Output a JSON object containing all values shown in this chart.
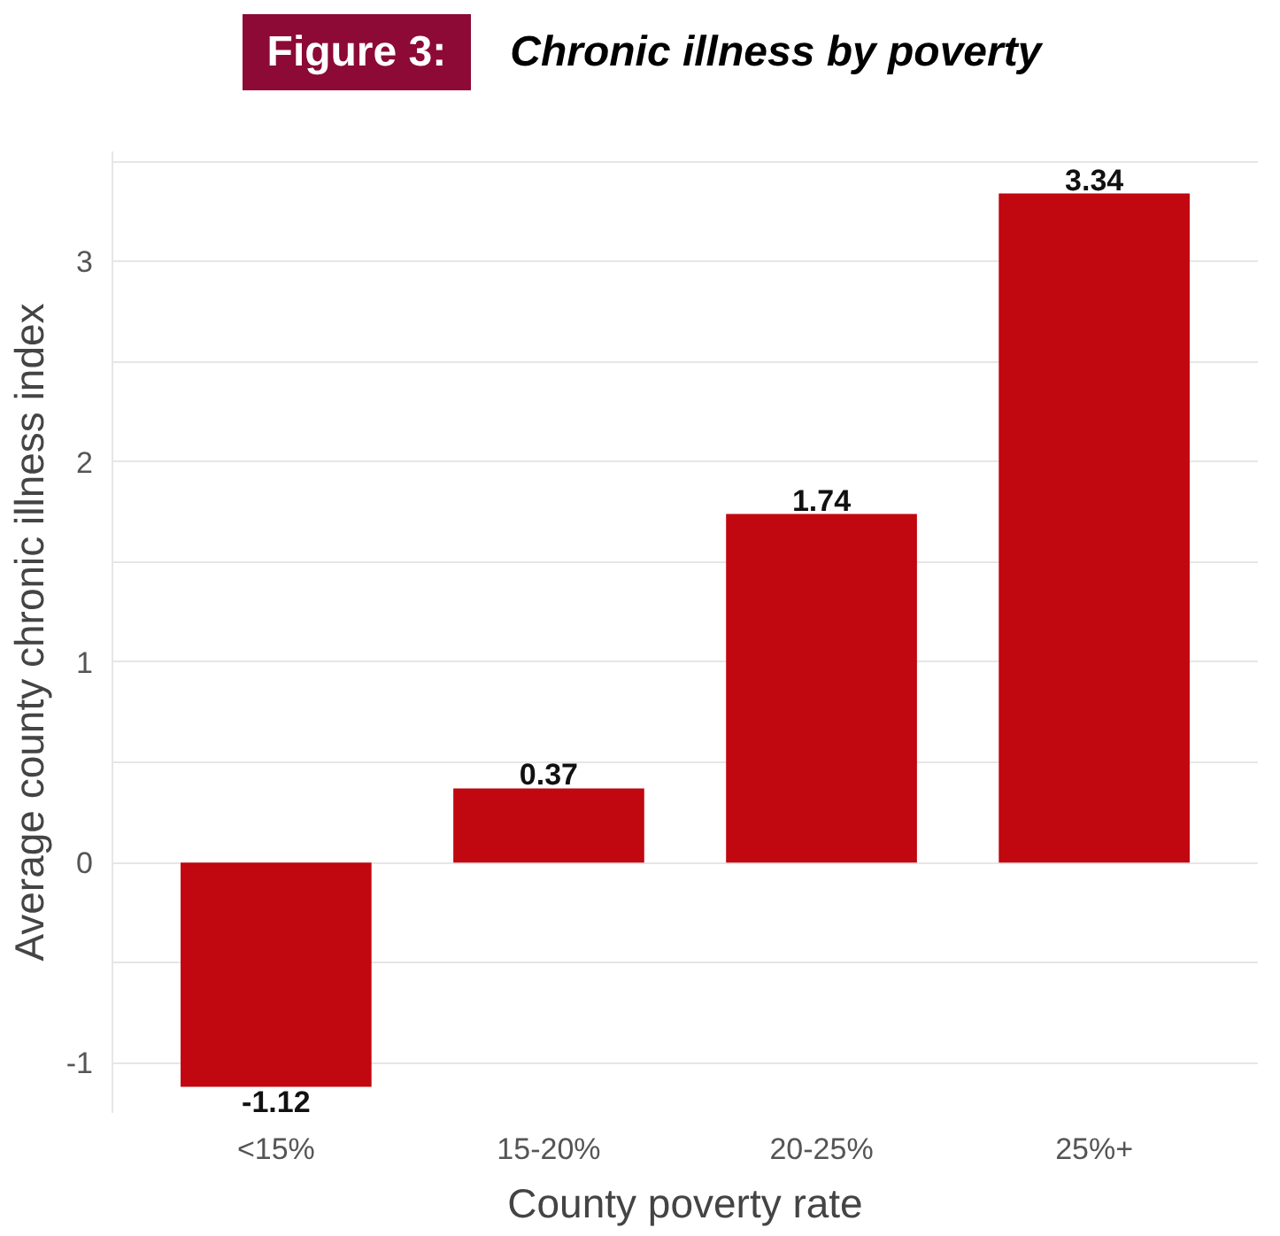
{
  "chart_data": {
    "type": "bar",
    "title": "Figure 3:",
    "subtitle": "Chronic illness by poverty",
    "xlabel": "County poverty rate",
    "ylabel": "Average county chronic illness index",
    "categories": [
      "<15%",
      "15-20%",
      "20-25%",
      "25%+"
    ],
    "values": [
      -1.12,
      0.37,
      1.74,
      3.34
    ],
    "color": "#c1070f",
    "ylim": [
      -1.25,
      3.55
    ],
    "yticks": [
      -1,
      {
        "value": -0.5,
        "label": null
      },
      0,
      {
        "value": 0.5,
        "label": null
      },
      1,
      {
        "value": 1.5,
        "label": null
      },
      2,
      {
        "value": 2.5,
        "label": null
      },
      3,
      {
        "value": 3.5,
        "label": null
      }
    ],
    "grid": "y",
    "data_labels": true
  }
}
